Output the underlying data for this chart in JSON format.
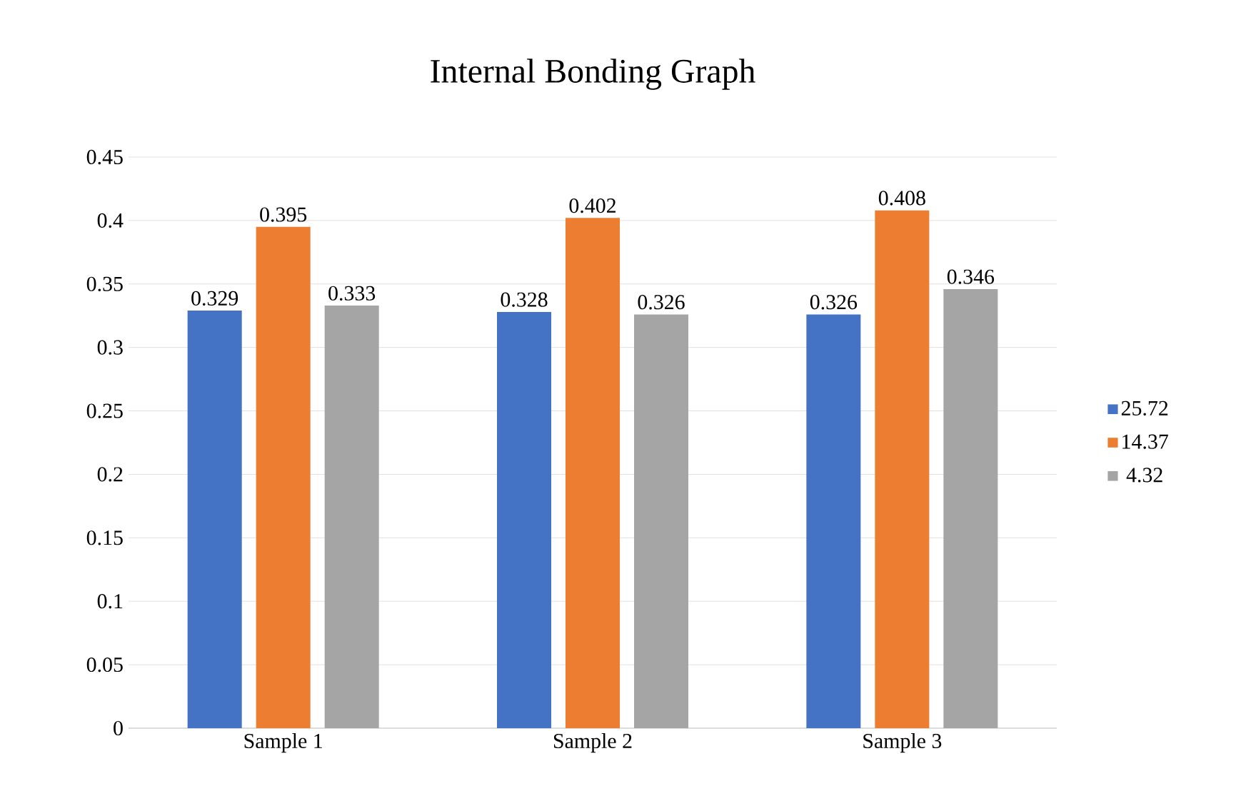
{
  "chart_data": {
    "type": "bar",
    "title": "Internal Bonding Graph",
    "categories": [
      "Sample 1",
      "Sample 2",
      "Sample 3"
    ],
    "series": [
      {
        "name": "25.72",
        "color": "#4472c4",
        "values": [
          0.329,
          0.328,
          0.326
        ]
      },
      {
        "name": "14.37",
        "color": "#ed7d31",
        "values": [
          0.395,
          0.402,
          0.408
        ]
      },
      {
        "name": "4.32",
        "color": "#a5a5a5",
        "values": [
          0.333,
          0.326,
          0.346
        ]
      }
    ],
    "ylim": [
      0,
      0.45
    ],
    "yticks": [
      0,
      0.05,
      0.1,
      0.15,
      0.2,
      0.25,
      0.3,
      0.35,
      0.4,
      0.45
    ],
    "grid": "y",
    "legend": "right",
    "data_labels": true
  }
}
